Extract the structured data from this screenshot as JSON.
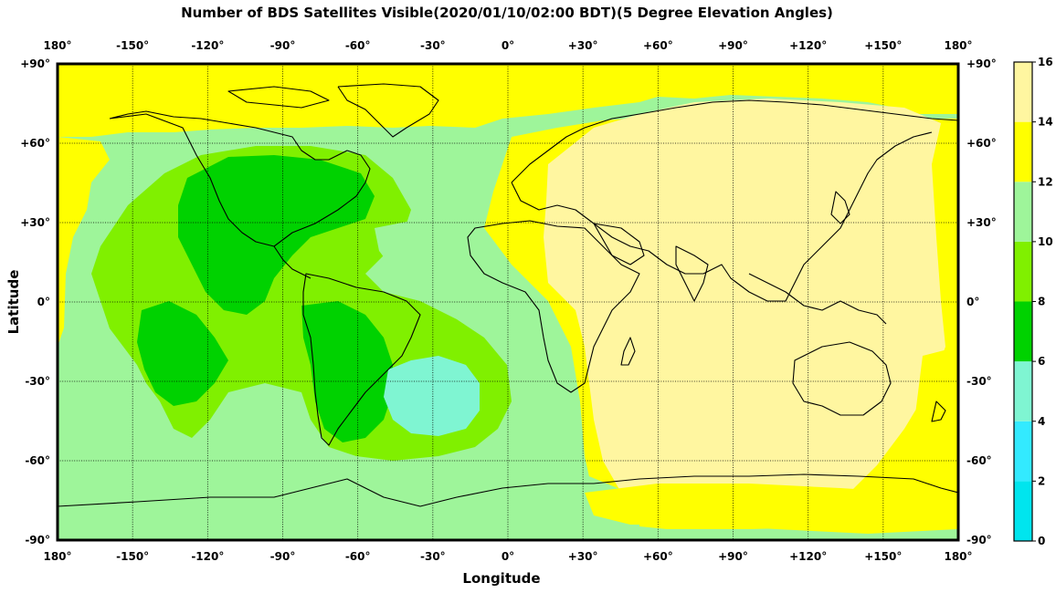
{
  "title": "Number of BDS Satellites Visible(2020/01/10/02:00 BDT)(5 Degree Elevation Angles)",
  "xlabel": "Longitude",
  "ylabel": "Latitude",
  "lon_ticks": [
    "180°",
    "-150°",
    "-120°",
    "-90°",
    "-60°",
    "-30°",
    "0°",
    "+30°",
    "+60°",
    "+90°",
    "+120°",
    "+150°",
    "180°"
  ],
  "lat_ticks": [
    "+90°",
    "+60°",
    "+30°",
    "0°",
    "-30°",
    "-60°",
    "-90°"
  ],
  "colorbar": {
    "ticks": [
      "16",
      "14",
      "12",
      "10",
      "8",
      "6",
      "4",
      "2",
      "0"
    ],
    "bins": [
      {
        "min": 0,
        "max": 2,
        "color": "#00e5ee"
      },
      {
        "min": 2,
        "max": 4,
        "color": "#33eaff"
      },
      {
        "min": 4,
        "max": 6,
        "color": "#7ff5d2"
      },
      {
        "min": 6,
        "max": 8,
        "color": "#00d200"
      },
      {
        "min": 8,
        "max": 10,
        "color": "#80f000"
      },
      {
        "min": 10,
        "max": 12,
        "color": "#9ef59a"
      },
      {
        "min": 12,
        "max": 14,
        "color": "#ffff00"
      },
      {
        "min": 14,
        "max": 16,
        "color": "#fff6a0"
      }
    ]
  },
  "map_data": {
    "type": "global-grid-heatmap",
    "lon_range": [
      -180,
      180
    ],
    "lat_range": [
      -90,
      90
    ],
    "grid_lines": true,
    "coastlines": true
  }
}
